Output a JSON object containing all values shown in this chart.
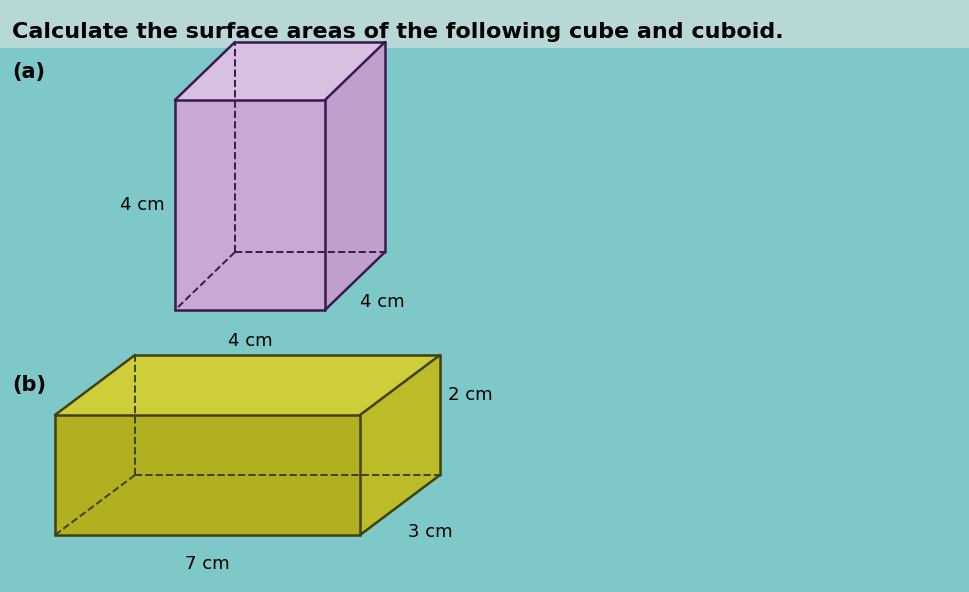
{
  "title": "Calculate the surface areas of the following cube and cuboid.",
  "label_a": "(a)",
  "label_b": "(b)",
  "bg_color": "#7ec8c8",
  "header_color": "#b8d8d8",
  "cube_front_color": "#c8a8d4",
  "cube_top_color": "#d8c0e0",
  "cube_right_color": "#bfa0cc",
  "cube_edge_color": "#3a1850",
  "cube_dim": "4 cm",
  "cuboid_top_color": "#cece3a",
  "cuboid_front_color": "#b0b020",
  "cuboid_right_color": "#bcbc28",
  "cuboid_edge_color": "#404010",
  "cuboid_l": "7 cm",
  "cuboid_w": "3 cm",
  "cuboid_h": "2 cm",
  "title_fontsize": 16,
  "label_fontsize": 15,
  "dim_fontsize": 13
}
